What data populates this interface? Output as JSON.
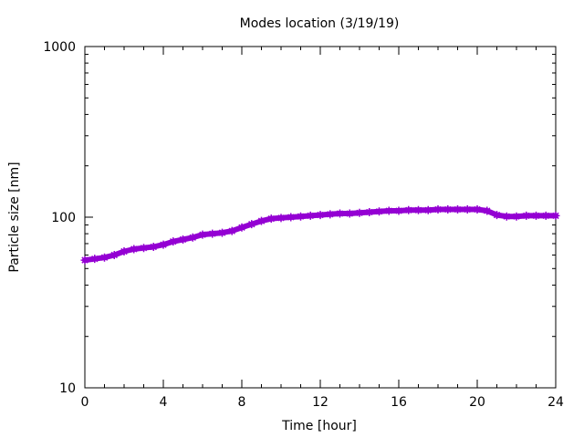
{
  "chart_data": {
    "type": "line",
    "title": "Modes location (3/19/19)",
    "xlabel": "Time [hour]",
    "ylabel": "Particle size [nm]",
    "xlim": [
      0,
      24
    ],
    "ylim": [
      10,
      1000
    ],
    "yscale": "log",
    "grid": false,
    "legend": "none",
    "xticks": [
      0,
      4,
      8,
      12,
      16,
      20,
      24
    ],
    "xtick_labels": [
      "0",
      "4",
      "8",
      "12",
      "16",
      "20",
      "24"
    ],
    "yticks": [
      10,
      100,
      1000
    ],
    "ytick_labels": [
      "10",
      "100",
      "1000"
    ],
    "series": [
      {
        "color": "#9400d3",
        "x": [
          0,
          0.5,
          1,
          1.5,
          2,
          2.5,
          3,
          3.5,
          4,
          4.5,
          5,
          5.5,
          6,
          6.5,
          7,
          7.5,
          8,
          8.5,
          9,
          9.5,
          10,
          10.5,
          11,
          11.5,
          12,
          12.5,
          13,
          13.5,
          14,
          14.5,
          15,
          15.5,
          16,
          16.5,
          17,
          17.5,
          18,
          18.5,
          19,
          19.5,
          20,
          20.5,
          21,
          21.5,
          22,
          22.5,
          23,
          23.5,
          24
        ],
        "y": [
          56,
          57,
          58,
          60,
          63,
          65,
          66,
          67,
          69,
          72,
          74,
          76,
          79,
          80,
          81,
          83,
          87,
          91,
          95,
          98,
          99,
          100,
          101,
          102,
          103,
          104,
          105,
          105,
          106,
          107,
          108,
          109,
          109,
          110,
          110,
          110,
          111,
          111,
          111,
          111,
          111,
          109,
          103,
          101,
          101,
          102,
          102,
          102,
          102
        ]
      }
    ]
  }
}
